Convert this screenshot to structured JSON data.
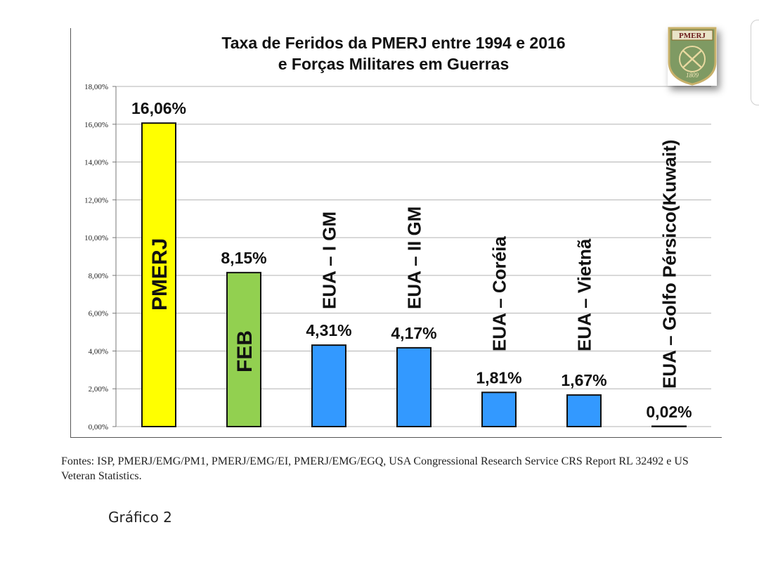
{
  "chart_data": {
    "type": "bar",
    "title_lines": [
      "Taxa de Feridos da PMERJ entre 1994 e 2016",
      "e Forças Militares em Guerras"
    ],
    "categories": [
      "PMERJ",
      "FEB",
      "EUA – I GM",
      "EUA – II GM",
      "EUA – Coréia",
      "EUA – Vietnã",
      "EUA – Golfo Pérsico(Kuwait)"
    ],
    "values": [
      16.06,
      8.15,
      4.31,
      4.17,
      1.81,
      1.67,
      0.02
    ],
    "value_labels": [
      "16,06%",
      "8,15%",
      "4,31%",
      "4,17%",
      "1,81%",
      "1,67%",
      "0,02%"
    ],
    "bar_colors": [
      "#ffff00",
      "#92d050",
      "#3399ff",
      "#3399ff",
      "#3399ff",
      "#3399ff",
      "#3399ff"
    ],
    "ylim": [
      0,
      18
    ],
    "yticks": [
      "0,00%",
      "2,00%",
      "4,00%",
      "6,00%",
      "8,00%",
      "10,00%",
      "12,00%",
      "14,00%",
      "16,00%",
      "18,00%"
    ],
    "grid": true
  },
  "badge": {
    "label": "PMERJ",
    "year": "1809"
  },
  "source_note": "Fontes: ISP, PMERJ/EMG/PM1, PMERJ/EMG/EI, PMERJ/EMG/EGQ, USA Congressional Research Service CRS Report RL 32492 e US Veteran Statistics.",
  "caption": "Gráfico 2"
}
